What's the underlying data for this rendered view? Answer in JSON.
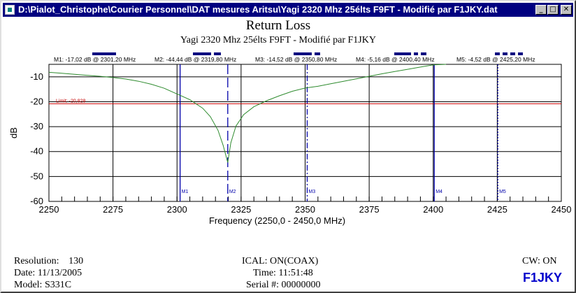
{
  "window": {
    "title": "D:\\Pialot_Christophe\\Courier Personnel\\DAT mesures Aritsu\\Yagi 2320 Mhz 25élts F9FT - Modifié par F1JKY.dat",
    "buttons": [
      "minimize",
      "maximize",
      "close"
    ]
  },
  "chart_data": {
    "type": "line",
    "title": "Return Loss",
    "subtitle": "Yagi 2320 Mhz 25élts F9FT - Modifié par F1JKY",
    "xlabel": "Frequency (2250,0 - 2450,0 MHz)",
    "ylabel": "dB",
    "xlim": [
      2250,
      2450
    ],
    "ylim": [
      -60,
      -5
    ],
    "x_ticks": [
      2250,
      2275,
      2300,
      2325,
      2350,
      2375,
      2400,
      2425,
      2450
    ],
    "y_ticks": [
      -10,
      -20,
      -30,
      -40,
      -50,
      -60
    ],
    "limit_line": {
      "label": "Limit: -20,828",
      "value": -20.828,
      "color": "#cc0000"
    },
    "markers": [
      {
        "name": "M1",
        "label": "M1: -17,02 dB @ 2301,20 MHz",
        "freq": 2301.2,
        "value": -17.02,
        "style": "solid"
      },
      {
        "name": "M2",
        "label": "M2: -44,44 dB @ 2319,80 MHz",
        "freq": 2319.8,
        "value": -44.44,
        "style": "dashed"
      },
      {
        "name": "M3",
        "label": "M3: -14,52 dB @ 2350,80 MHz",
        "freq": 2350.8,
        "value": -14.52,
        "style": "dashdot"
      },
      {
        "name": "M4",
        "label": "M4: -5,16 dB @ 2400,40 MHz",
        "freq": 2400.4,
        "value": -5.16,
        "style": "solid"
      },
      {
        "name": "M5",
        "label": "M5: -4,52 dB @ 2425,20 MHz",
        "freq": 2425.2,
        "value": -4.52,
        "style": "dotted"
      }
    ],
    "series": [
      {
        "name": "Return Loss",
        "color": "#2e8b2e",
        "x": [
          2250,
          2255,
          2260,
          2265,
          2270,
          2275,
          2280,
          2285,
          2290,
          2295,
          2300,
          2305,
          2310,
          2313,
          2316,
          2318,
          2319.8,
          2321,
          2323,
          2326,
          2330,
          2335,
          2340,
          2345,
          2350,
          2355,
          2360,
          2365,
          2370,
          2375,
          2380,
          2385,
          2390,
          2395,
          2400,
          2405
        ],
        "y": [
          -8.2,
          -8.6,
          -9.0,
          -9.4,
          -9.8,
          -10.3,
          -10.9,
          -11.8,
          -13.0,
          -14.6,
          -16.9,
          -19.2,
          -22.6,
          -26.0,
          -31.5,
          -37.5,
          -44.4,
          -36.5,
          -29.8,
          -25.2,
          -22.0,
          -19.6,
          -17.6,
          -15.8,
          -14.5,
          -13.8,
          -12.8,
          -11.8,
          -10.8,
          -9.8,
          -8.8,
          -7.9,
          -7.0,
          -6.1,
          -5.2,
          -4.9
        ]
      }
    ]
  },
  "info": {
    "resolution_label": "Resolution:",
    "resolution_value": "130",
    "date": "Date: 11/13/2005",
    "model": "Model:  S331C",
    "ical": "ICAL: ON(COAX)",
    "time": "Time: 11:51:48",
    "serial": "Serial #: 00000000",
    "cw": "CW: ON",
    "brand": "F1JKY"
  },
  "colors": {
    "titlebar": "#000080",
    "trace": "#2e8b2e",
    "marker": "#0000aa",
    "limit": "#cc0000"
  }
}
